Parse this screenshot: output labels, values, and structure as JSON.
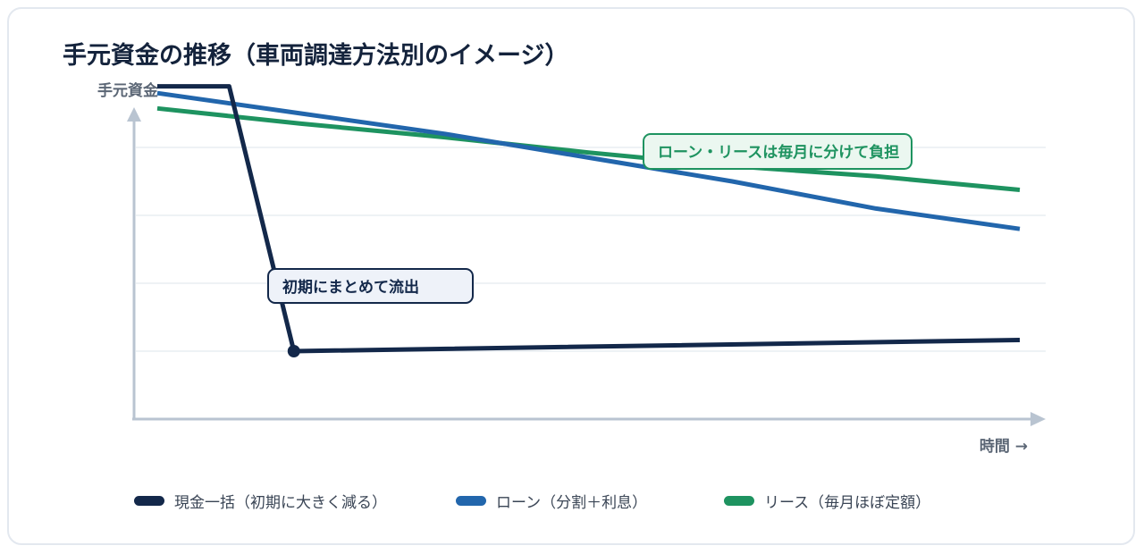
{
  "chart_data": {
    "type": "line",
    "title": "手元資金の推移（車両調達方法別のイメージ）",
    "ylabel": "手元資金",
    "xlabel": "時間 →",
    "x_range": [
      0,
      12
    ],
    "ylim": [
      0,
      100
    ],
    "grid": true,
    "legend_position": "bottom",
    "series": [
      {
        "name": "現金一括（初期に大きく減る）",
        "color": "#13284a",
        "points": [
          [
            0,
            98
          ],
          [
            1,
            98
          ],
          [
            1.9,
            20
          ],
          [
            12,
            23.3
          ]
        ]
      },
      {
        "name": "ローン（分割＋利息）",
        "color": "#2266ac",
        "points": [
          [
            0,
            96
          ],
          [
            2,
            90
          ],
          [
            4,
            84
          ],
          [
            6,
            77
          ],
          [
            8,
            70
          ],
          [
            10,
            62
          ],
          [
            12,
            56
          ]
        ]
      },
      {
        "name": "リース（毎月ほぼ定額）",
        "color": "#1e9360",
        "points": [
          [
            0,
            91.5
          ],
          [
            2,
            87
          ],
          [
            4,
            83
          ],
          [
            6,
            78.5
          ],
          [
            8,
            74.5
          ],
          [
            10,
            71.5
          ],
          [
            12,
            67.5
          ]
        ]
      }
    ],
    "annotations": [
      {
        "text": "初期にまとめて流出",
        "series": 0,
        "x": 1.9,
        "y": 20
      },
      {
        "text": "ローン・リースは毎月に分けて負担",
        "series": 2
      }
    ]
  }
}
